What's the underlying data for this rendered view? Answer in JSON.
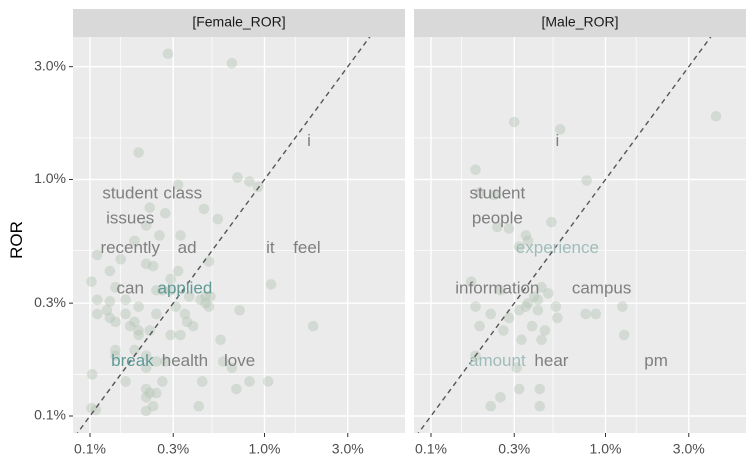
{
  "chart_data": {
    "type": "scatter",
    "ylabel": "ROR",
    "xlabel": "",
    "scale": "log",
    "xlim": [
      0.00085,
      0.05
    ],
    "ylim": [
      0.00085,
      0.045
    ],
    "x_ticks": [
      0.001,
      0.003,
      0.01,
      0.03
    ],
    "x_tick_labels": [
      "0.1%",
      "0.3%",
      "1.0%",
      "3.0%"
    ],
    "y_ticks": [
      0.001,
      0.003,
      0.01,
      0.03
    ],
    "y_tick_labels": [
      "0.1%",
      "0.3%",
      "1.0%",
      "3.0%"
    ],
    "grid": true,
    "reference_line": "y = x",
    "colors": {
      "panel_bg": "#ebebeb",
      "strip_bg": "#d9d9d9",
      "grid": "#ffffff",
      "point": "#b5c5b5",
      "label_gray": "#7f7f7f",
      "label_teal": "#5f9a96",
      "label_teal_light": "#9fbcb8",
      "ref_line": "#555555"
    },
    "panels": [
      {
        "name": "[Female_ROR]",
        "labels": [
          {
            "text": "i",
            "x": 0.018,
            "y": 0.0145,
            "color": "label_gray"
          },
          {
            "text": "student",
            "x": 0.0017,
            "y": 0.0087,
            "color": "label_gray"
          },
          {
            "text": "class",
            "x": 0.0034,
            "y": 0.0087,
            "color": "label_gray"
          },
          {
            "text": "issues",
            "x": 0.0017,
            "y": 0.0068,
            "color": "label_gray"
          },
          {
            "text": "recently",
            "x": 0.0017,
            "y": 0.0051,
            "color": "label_gray"
          },
          {
            "text": "ad",
            "x": 0.0036,
            "y": 0.0051,
            "color": "label_gray"
          },
          {
            "text": "it",
            "x": 0.0108,
            "y": 0.0051,
            "color": "label_gray"
          },
          {
            "text": "feel",
            "x": 0.0175,
            "y": 0.0051,
            "color": "label_gray"
          },
          {
            "text": "can",
            "x": 0.0017,
            "y": 0.00345,
            "color": "label_gray"
          },
          {
            "text": "applied",
            "x": 0.0035,
            "y": 0.00345,
            "color": "label_teal"
          },
          {
            "text": "break",
            "x": 0.00175,
            "y": 0.0017,
            "color": "label_teal"
          },
          {
            "text": "health",
            "x": 0.0035,
            "y": 0.0017,
            "color": "label_gray"
          },
          {
            "text": "love",
            "x": 0.0072,
            "y": 0.0017,
            "color": "label_gray"
          }
        ],
        "points": [
          [
            0.0028,
            0.034
          ],
          [
            0.0065,
            0.031
          ],
          [
            0.0019,
            0.013
          ],
          [
            0.0032,
            0.0095
          ],
          [
            0.007,
            0.0102
          ],
          [
            0.0082,
            0.0098
          ],
          [
            0.0092,
            0.0093
          ],
          [
            0.0022,
            0.0076
          ],
          [
            0.0027,
            0.0072
          ],
          [
            0.0054,
            0.0068
          ],
          [
            0.0045,
            0.0075
          ],
          [
            0.0021,
            0.0064
          ],
          [
            0.0025,
            0.0058
          ],
          [
            0.0033,
            0.0058
          ],
          [
            0.0018,
            0.0055
          ],
          [
            0.0011,
            0.0048
          ],
          [
            0.0015,
            0.0046
          ],
          [
            0.0021,
            0.0044
          ],
          [
            0.0023,
            0.0043
          ],
          [
            0.0013,
            0.0041
          ],
          [
            0.0029,
            0.0038
          ],
          [
            0.0048,
            0.0045
          ],
          [
            0.0032,
            0.0041
          ],
          [
            0.00102,
            0.0037
          ],
          [
            0.0014,
            0.0035
          ],
          [
            0.0024,
            0.0034
          ],
          [
            0.0026,
            0.0034
          ],
          [
            0.0029,
            0.0034
          ],
          [
            0.0037,
            0.0032
          ],
          [
            0.0043,
            0.0031
          ],
          [
            0.0046,
            0.0032
          ],
          [
            0.0109,
            0.0036
          ],
          [
            0.0011,
            0.0031
          ],
          [
            0.0013,
            0.00305
          ],
          [
            0.0016,
            0.0031
          ],
          [
            0.0019,
            0.0029
          ],
          [
            0.0031,
            0.0029
          ],
          [
            0.0046,
            0.003
          ],
          [
            0.00125,
            0.0028
          ],
          [
            0.0013,
            0.0026
          ],
          [
            0.0011,
            0.0027
          ],
          [
            0.0014,
            0.0025
          ],
          [
            0.0024,
            0.0027
          ],
          [
            0.0017,
            0.0024
          ],
          [
            0.0018,
            0.0025
          ],
          [
            0.0019,
            0.0023
          ],
          [
            0.0022,
            0.0023
          ],
          [
            0.0036,
            0.0025
          ],
          [
            0.0033,
            0.0022
          ],
          [
            0.0039,
            0.0024
          ],
          [
            0.0029,
            0.0022
          ],
          [
            0.0056,
            0.0021
          ],
          [
            0.0018,
            0.0019
          ],
          [
            0.0014,
            0.0018
          ],
          [
            0.0021,
            0.0018
          ],
          [
            0.0024,
            0.0017
          ],
          [
            0.0027,
            0.0017
          ],
          [
            0.0058,
            0.0017
          ],
          [
            0.0065,
            0.0016
          ],
          [
            0.0021,
            0.0016
          ],
          [
            0.00103,
            0.0015
          ],
          [
            0.0016,
            0.0014
          ],
          [
            0.0026,
            0.0014
          ],
          [
            0.0044,
            0.0014
          ],
          [
            0.0082,
            0.0014
          ],
          [
            0.0105,
            0.0014
          ],
          [
            0.0069,
            0.0013
          ],
          [
            0.0021,
            0.0013
          ],
          [
            0.0022,
            0.00125
          ],
          [
            0.0024,
            0.00125
          ],
          [
            0.0021,
            0.0012
          ],
          [
            0.0023,
            0.0011
          ],
          [
            0.0042,
            0.0011
          ],
          [
            0.0021,
            0.00105
          ],
          [
            0.00102,
            0.00108
          ],
          [
            0.00108,
            0.00106
          ],
          [
            0.0014,
            0.0019
          ],
          [
            0.0019,
            0.0022
          ],
          [
            0.0035,
            0.0027
          ],
          [
            0.0048,
            0.0029
          ],
          [
            0.0072,
            0.0028
          ],
          [
            0.0016,
            0.0027
          ],
          [
            0.019,
            0.0024
          ],
          [
            0.0049,
            0.0032
          ]
        ]
      },
      {
        "name": "[Male_ROR]",
        "labels": [
          {
            "text": "i",
            "x": 0.0053,
            "y": 0.0145,
            "color": "label_gray"
          },
          {
            "text": "student",
            "x": 0.0024,
            "y": 0.0087,
            "color": "label_gray"
          },
          {
            "text": "people",
            "x": 0.0024,
            "y": 0.0068,
            "color": "label_gray"
          },
          {
            "text": "experience",
            "x": 0.0053,
            "y": 0.0051,
            "color": "label_teal_light"
          },
          {
            "text": "information",
            "x": 0.0024,
            "y": 0.00345,
            "color": "label_gray"
          },
          {
            "text": "campus",
            "x": 0.0095,
            "y": 0.00345,
            "color": "label_gray"
          },
          {
            "text": "amount",
            "x": 0.0024,
            "y": 0.0017,
            "color": "label_teal_light"
          },
          {
            "text": "hear",
            "x": 0.0049,
            "y": 0.0017,
            "color": "label_gray"
          },
          {
            "text": "pm",
            "x": 0.0195,
            "y": 0.0017,
            "color": "label_gray"
          }
        ],
        "points": [
          [
            0.043,
            0.0185
          ],
          [
            0.0055,
            0.0163
          ],
          [
            0.003,
            0.0175
          ],
          [
            0.0018,
            0.011
          ],
          [
            0.0078,
            0.0099
          ],
          [
            0.0019,
            0.0088
          ],
          [
            0.0023,
            0.0086
          ],
          [
            0.0049,
            0.0066
          ],
          [
            0.0028,
            0.0062
          ],
          [
            0.0035,
            0.0058
          ],
          [
            0.0024,
            0.0063
          ],
          [
            0.0036,
            0.0055
          ],
          [
            0.0032,
            0.0052
          ],
          [
            0.0017,
            0.0037
          ],
          [
            0.0025,
            0.0034
          ],
          [
            0.0043,
            0.0035
          ],
          [
            0.0047,
            0.0033
          ],
          [
            0.0039,
            0.0032
          ],
          [
            0.0036,
            0.003
          ],
          [
            0.0052,
            0.0029
          ],
          [
            0.0018,
            0.0029
          ],
          [
            0.0032,
            0.0028
          ],
          [
            0.0035,
            0.0029
          ],
          [
            0.0041,
            0.0028
          ],
          [
            0.0041,
            0.0031
          ],
          [
            0.0077,
            0.0027
          ],
          [
            0.0088,
            0.0027
          ],
          [
            0.0125,
            0.0029
          ],
          [
            0.0019,
            0.0024
          ],
          [
            0.0026,
            0.0023
          ],
          [
            0.0045,
            0.0023
          ],
          [
            0.0033,
            0.0021
          ],
          [
            0.0043,
            0.0021
          ],
          [
            0.0128,
            0.0022
          ],
          [
            0.0018,
            0.0018
          ],
          [
            0.0031,
            0.0016
          ],
          [
            0.0032,
            0.0013
          ],
          [
            0.0025,
            0.0012
          ],
          [
            0.0042,
            0.0013
          ],
          [
            0.0022,
            0.0011
          ],
          [
            0.0042,
            0.0011
          ],
          [
            0.0038,
            0.0024
          ],
          [
            0.0028,
            0.0026
          ],
          [
            0.0053,
            0.0026
          ],
          [
            0.0022,
            0.0027
          ]
        ]
      }
    ]
  }
}
